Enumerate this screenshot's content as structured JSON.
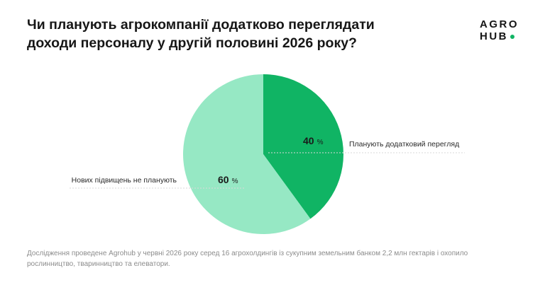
{
  "title_line1": "Чи планують агрокомпанії додатково переглядати",
  "title_line2": "доходи персоналу у другій половині 2026 року?",
  "logo": {
    "line1": "AGRO",
    "line2": "HUB"
  },
  "colors": {
    "dark_green": "#10b464",
    "light_green": "#96e8c4",
    "dot": "#10b464"
  },
  "chart_data": {
    "type": "pie",
    "unit": "%",
    "slices": [
      {
        "label": "Планують додатковий перегляд",
        "value": 40,
        "color": "#10b464"
      },
      {
        "label": "Нових підвищень не планують",
        "value": 60,
        "color": "#96e8c4"
      }
    ]
  },
  "footnote_line1": "Дослідження проведене Agrohub у червні 2026 року серед 16 агрохолдингів із сукупним земельним банком 2,2 млн гектарів і охопило",
  "footnote_line2": "рослинництво, тваринництво та елеватори."
}
